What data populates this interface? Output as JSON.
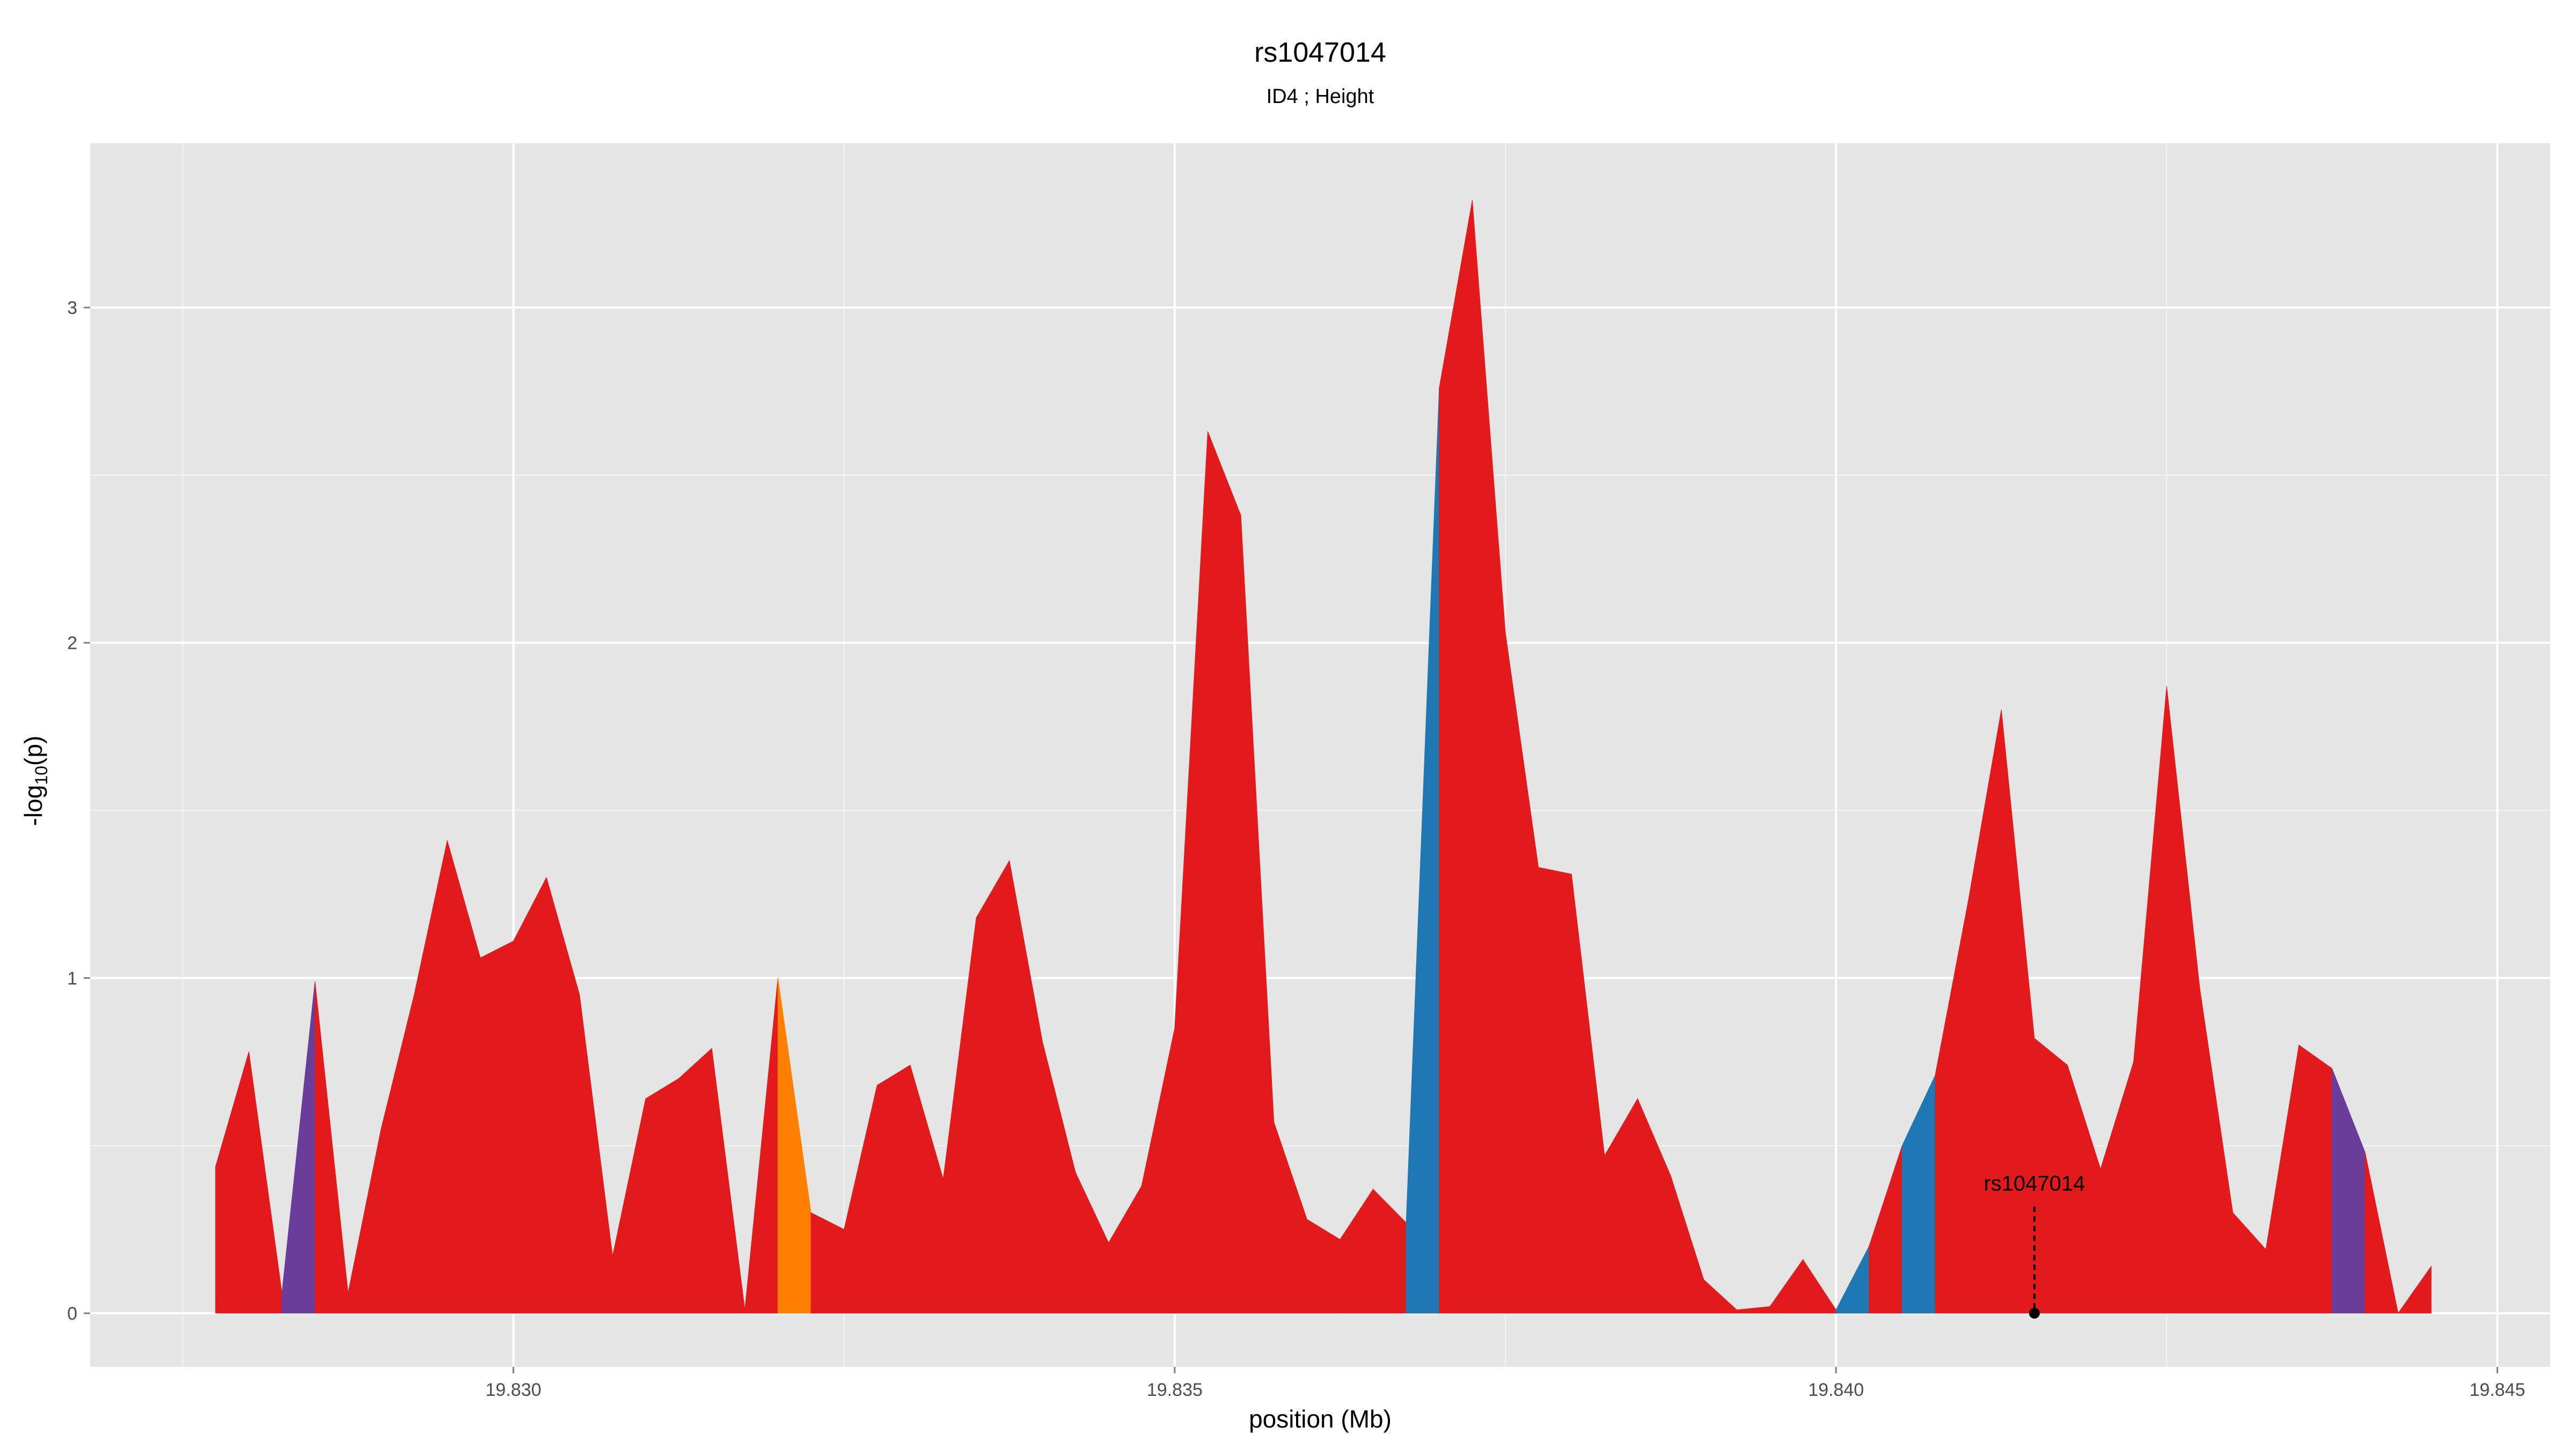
{
  "chart_data": {
    "type": "area",
    "title": "rs1047014",
    "subtitle": "ID4 ; Height",
    "xlabel": "position (Mb)",
    "ylabel_prefix": "-log",
    "ylabel_sub": "10",
    "ylabel_suffix": "(p)",
    "xlim": [
      19.8268,
      19.8454
    ],
    "ylim": [
      -0.16,
      3.49
    ],
    "xticks": [
      19.83,
      19.835,
      19.84,
      19.845
    ],
    "xtick_labels": [
      "19.830",
      "19.835",
      "19.840",
      "19.845"
    ],
    "yticks": [
      0,
      1,
      2,
      3
    ],
    "ytick_labels": [
      "0",
      "1",
      "2",
      "3"
    ],
    "grid": true,
    "colors": {
      "background": "#e5e5e5",
      "grid": "#ffffff",
      "red": "#e31a1c",
      "purple": "#6a3d9a",
      "orange": "#ff7f00",
      "blue": "#1f78b4"
    },
    "points": [
      {
        "x": 19.82775,
        "y": 0.44,
        "color": "red"
      },
      {
        "x": 19.828,
        "y": 0.78,
        "color": "red"
      },
      {
        "x": 19.82825,
        "y": 0.06,
        "color": "red"
      },
      {
        "x": 19.8285,
        "y": 0.99,
        "color": "purple"
      },
      {
        "x": 19.82875,
        "y": 0.06,
        "color": "red"
      },
      {
        "x": 19.829,
        "y": 0.55,
        "color": "red"
      },
      {
        "x": 19.82925,
        "y": 0.95,
        "color": "red"
      },
      {
        "x": 19.8295,
        "y": 1.41,
        "color": "red"
      },
      {
        "x": 19.82975,
        "y": 1.06,
        "color": "red"
      },
      {
        "x": 19.83,
        "y": 1.11,
        "color": "red"
      },
      {
        "x": 19.83025,
        "y": 1.3,
        "color": "red"
      },
      {
        "x": 19.8305,
        "y": 0.95,
        "color": "red"
      },
      {
        "x": 19.83075,
        "y": 0.17,
        "color": "red"
      },
      {
        "x": 19.831,
        "y": 0.64,
        "color": "red"
      },
      {
        "x": 19.83125,
        "y": 0.7,
        "color": "red"
      },
      {
        "x": 19.8315,
        "y": 0.79,
        "color": "red"
      },
      {
        "x": 19.83175,
        "y": 0.01,
        "color": "red"
      },
      {
        "x": 19.832,
        "y": 1.0,
        "color": "red"
      },
      {
        "x": 19.83225,
        "y": 0.3,
        "color": "orange"
      },
      {
        "x": 19.8325,
        "y": 0.25,
        "color": "red"
      },
      {
        "x": 19.83275,
        "y": 0.68,
        "color": "red"
      },
      {
        "x": 19.833,
        "y": 0.74,
        "color": "red"
      },
      {
        "x": 19.83325,
        "y": 0.4,
        "color": "red"
      },
      {
        "x": 19.8335,
        "y": 1.18,
        "color": "red"
      },
      {
        "x": 19.83375,
        "y": 1.35,
        "color": "red"
      },
      {
        "x": 19.834,
        "y": 0.81,
        "color": "red"
      },
      {
        "x": 19.83425,
        "y": 0.42,
        "color": "red"
      },
      {
        "x": 19.8345,
        "y": 0.21,
        "color": "red"
      },
      {
        "x": 19.83475,
        "y": 0.38,
        "color": "red"
      },
      {
        "x": 19.835,
        "y": 0.85,
        "color": "red"
      },
      {
        "x": 19.83525,
        "y": 2.63,
        "color": "red"
      },
      {
        "x": 19.8355,
        "y": 2.38,
        "color": "red"
      },
      {
        "x": 19.83575,
        "y": 0.57,
        "color": "red"
      },
      {
        "x": 19.836,
        "y": 0.28,
        "color": "red"
      },
      {
        "x": 19.83625,
        "y": 0.22,
        "color": "red"
      },
      {
        "x": 19.8365,
        "y": 0.37,
        "color": "red"
      },
      {
        "x": 19.83675,
        "y": 0.27,
        "color": "red"
      },
      {
        "x": 19.837,
        "y": 2.76,
        "color": "blue"
      },
      {
        "x": 19.83725,
        "y": 3.32,
        "color": "red"
      },
      {
        "x": 19.8375,
        "y": 2.03,
        "color": "red"
      },
      {
        "x": 19.83775,
        "y": 1.33,
        "color": "red"
      },
      {
        "x": 19.838,
        "y": 1.31,
        "color": "red"
      },
      {
        "x": 19.83825,
        "y": 0.47,
        "color": "red"
      },
      {
        "x": 19.8385,
        "y": 0.64,
        "color": "red"
      },
      {
        "x": 19.83875,
        "y": 0.41,
        "color": "red"
      },
      {
        "x": 19.839,
        "y": 0.1,
        "color": "red"
      },
      {
        "x": 19.83925,
        "y": 0.01,
        "color": "red"
      },
      {
        "x": 19.8395,
        "y": 0.02,
        "color": "red"
      },
      {
        "x": 19.83975,
        "y": 0.16,
        "color": "red"
      },
      {
        "x": 19.84,
        "y": 0.01,
        "color": "red"
      },
      {
        "x": 19.84025,
        "y": 0.2,
        "color": "blue"
      },
      {
        "x": 19.8405,
        "y": 0.5,
        "color": "red"
      },
      {
        "x": 19.84075,
        "y": 0.71,
        "color": "blue"
      },
      {
        "x": 19.841,
        "y": 1.23,
        "color": "red"
      },
      {
        "x": 19.84125,
        "y": 1.8,
        "color": "red"
      },
      {
        "x": 19.8415,
        "y": 0.82,
        "color": "red"
      },
      {
        "x": 19.84175,
        "y": 0.74,
        "color": "red"
      },
      {
        "x": 19.842,
        "y": 0.43,
        "color": "red"
      },
      {
        "x": 19.84225,
        "y": 0.75,
        "color": "red"
      },
      {
        "x": 19.8425,
        "y": 1.87,
        "color": "red"
      },
      {
        "x": 19.84275,
        "y": 0.97,
        "color": "red"
      },
      {
        "x": 19.843,
        "y": 0.3,
        "color": "red"
      },
      {
        "x": 19.84325,
        "y": 0.19,
        "color": "red"
      },
      {
        "x": 19.8435,
        "y": 0.8,
        "color": "red"
      },
      {
        "x": 19.84375,
        "y": 0.73,
        "color": "red"
      },
      {
        "x": 19.844,
        "y": 0.48,
        "color": "purple"
      },
      {
        "x": 19.84425,
        "y": 0.0,
        "color": "red"
      },
      {
        "x": 19.8445,
        "y": 0.14,
        "color": "red"
      }
    ],
    "annotation": {
      "label": "rs1047014",
      "x": 19.8415,
      "y": 0.0,
      "label_y": 0.35
    }
  }
}
